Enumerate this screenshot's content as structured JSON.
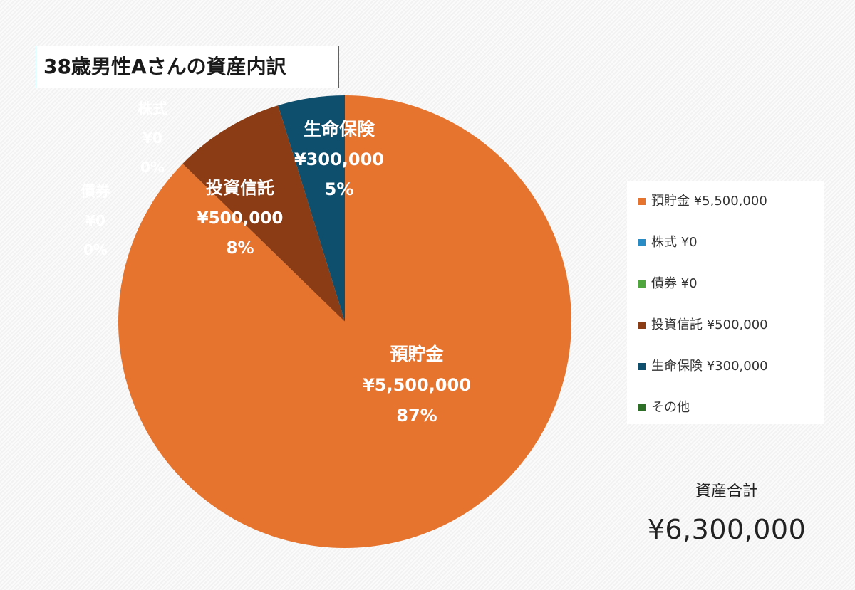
{
  "chart_data": {
    "type": "pie",
    "title": "38歳男性Aさんの資産内訳",
    "start_angle_deg": 0,
    "direction": "clockwise",
    "slices": [
      {
        "name": "預貯金",
        "amount_label": "¥5,500,000",
        "value": 5500000,
        "percent_label": "87%",
        "legend_label": "預貯金 ¥5,500,000",
        "color": "#E6742F"
      },
      {
        "name": "株式",
        "amount_label": "¥0",
        "value": 0,
        "percent_label": "0%",
        "legend_label": "株式 ¥0",
        "color": "#2A8CC4"
      },
      {
        "name": "債券",
        "amount_label": "¥0",
        "value": 0,
        "percent_label": "0%",
        "legend_label": "債券 ¥0",
        "color": "#4EA63C"
      },
      {
        "name": "投資信託",
        "amount_label": "¥500,000",
        "value": 500000,
        "percent_label": "8%",
        "legend_label": "投資信託 ¥500,000",
        "color": "#8B3C14"
      },
      {
        "name": "生命保険",
        "amount_label": "¥300,000",
        "value": 300000,
        "percent_label": "5%",
        "legend_label": "生命保険 ¥300,000",
        "color": "#0F4F6E"
      },
      {
        "name": "その他",
        "value": 0,
        "legend_label": "その他",
        "color": "#2E6F28"
      }
    ],
    "legend_position": "right",
    "total": {
      "label": "資産合計",
      "value_label": "¥6,300,000"
    }
  }
}
